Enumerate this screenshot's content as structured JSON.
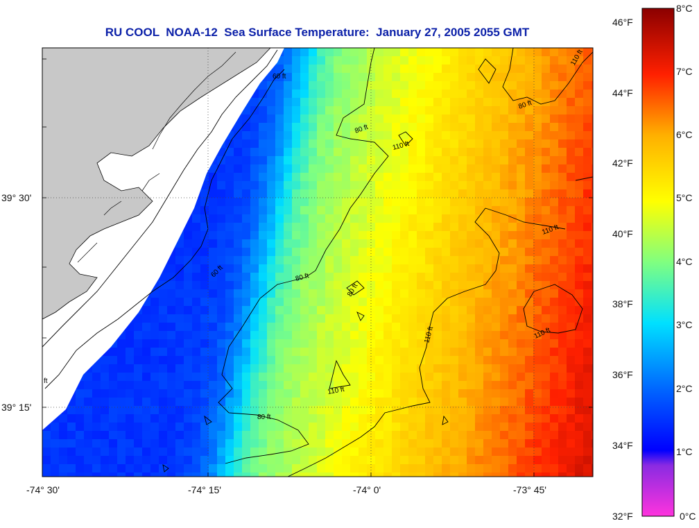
{
  "title": "RU COOL  NOAA-12  Sea Surface Temperature:  January 27, 2005 2055 GMT",
  "axes": {
    "lat_labels": [
      "39° 30'",
      "39° 15'"
    ],
    "lon_labels": [
      "-74° 30'",
      "-74° 15'",
      "-74° 0'",
      "-73° 45'"
    ]
  },
  "contours": {
    "labels": [
      "60 ft",
      "60 ft",
      "80 ft",
      "80 ft",
      "80 ft",
      "80 ft",
      "110 ft",
      "110 ft",
      "110 ft",
      "110 ft",
      "110 ft",
      "80 ft",
      "110 ft",
      "ft"
    ]
  },
  "colorbar": {
    "fahrenheit": [
      "46°F",
      "44°F",
      "42°F",
      "40°F",
      "38°F",
      "36°F",
      "34°F",
      "32°F"
    ],
    "celsius": [
      "8°C",
      "7°C",
      "6°C",
      "5°C",
      "4°C",
      "3°C",
      "2°C",
      "1°C",
      "0°C"
    ],
    "range_c": [
      0,
      8
    ]
  },
  "colors": {
    "title": "#0a1fa8",
    "land": "#c8c8c8",
    "no_data": "#ffffff",
    "scale_cold": "#ff40d0",
    "scale_warm": "#8b0000"
  }
}
